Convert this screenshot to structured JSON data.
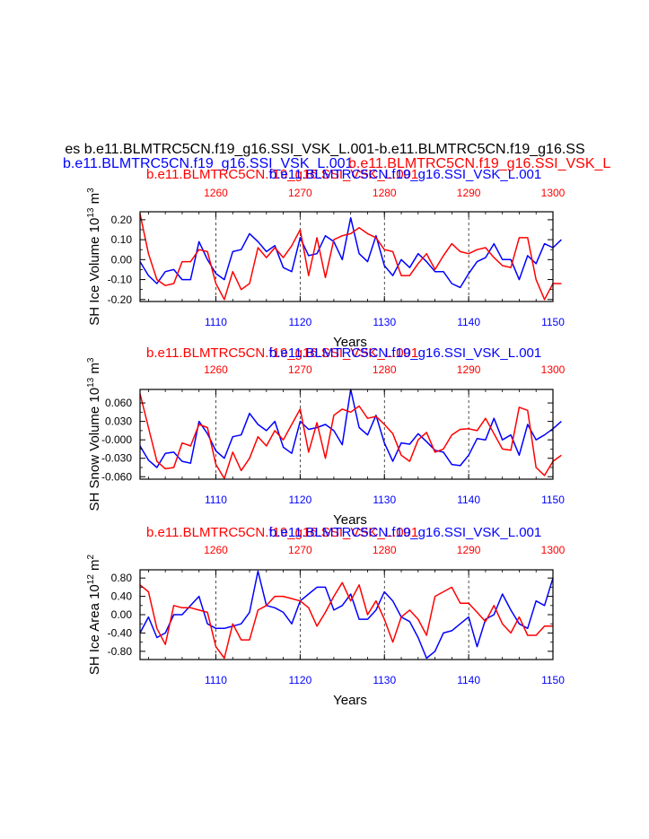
{
  "header": {
    "line1": "es b.e11.BLMTRC5CN.f19_g16.SSI_VSK_L.001-b.e11.BLMTRC5CN.f19_g16.SS",
    "line2_blue": "b.e11.BLMTRC5CN.f19_g16.SSI_VSK_L.001",
    "line2_red": "b.e11.BLMTRC5CN.f19_g16.SSI_VSK_L",
    "colors": {
      "blue": "#0000ff",
      "red": "#ff0000",
      "black": "#000000"
    }
  },
  "chart_data": [
    {
      "type": "line",
      "key": "ice_volume",
      "top_label_red": "b.e11.BLMTRC5CN.f19_g16.SSI_VSK_L.001",
      "top_label_blue": "b.e11.BLMTRC5CN.f19_g16.SSI_VSK_L.001",
      "ylabel": "SH Ice Volume 10^13 m^3",
      "ylabel_main": "SH Ice Volume 10",
      "ylabel_sup1": "13",
      "ylabel_mid": " m",
      "ylabel_sup2": "3",
      "xlabel": "Years",
      "xlim": [
        1101,
        1150
      ],
      "ylim": [
        -0.21,
        0.24
      ],
      "bottom_ticks": [
        1110,
        1120,
        1130,
        1140,
        1150
      ],
      "top_ticks": [
        1260,
        1270,
        1280,
        1290,
        1300
      ],
      "top_offset": 150,
      "yticks": [
        0.2,
        0.1,
        0.0,
        -0.1,
        -0.2
      ],
      "ytick_labels": [
        "0.20",
        "0.10",
        "0.00",
        "-0.10",
        "-0.20"
      ],
      "series": [
        {
          "name": "b.e11.BLMTRC5CN.f19_g16.SSI_VSK_L.001",
          "color": "#0000ff",
          "x_start": 1101,
          "values": [
            -0.01,
            -0.08,
            -0.12,
            -0.06,
            -0.05,
            -0.1,
            -0.1,
            0.09,
            0.0,
            -0.07,
            -0.1,
            0.04,
            0.05,
            0.13,
            0.09,
            0.04,
            0.07,
            -0.04,
            -0.06,
            0.11,
            0.02,
            0.03,
            0.12,
            0.09,
            0.0,
            0.21,
            0.03,
            -0.01,
            0.12,
            -0.03,
            -0.08,
            0.0,
            -0.04,
            0.03,
            -0.01,
            -0.06,
            -0.06,
            -0.12,
            -0.14,
            -0.07,
            -0.01,
            0.01,
            0.08,
            0.0,
            0.0,
            -0.1,
            0.02,
            -0.02,
            0.08,
            0.06,
            0.1
          ]
        },
        {
          "name": "b.e11.BLMTRC5CN.f19_g16.SSI_VSK_L.001",
          "color": "#ff0000",
          "x_start": 1101,
          "values": [
            0.23,
            0.03,
            -0.1,
            -0.13,
            -0.12,
            -0.01,
            -0.01,
            0.05,
            0.04,
            -0.12,
            -0.2,
            -0.06,
            -0.15,
            -0.12,
            0.06,
            0.01,
            0.06,
            0.01,
            0.07,
            0.15,
            -0.08,
            0.11,
            -0.09,
            0.1,
            0.12,
            0.13,
            0.16,
            0.13,
            0.11,
            0.05,
            0.04,
            -0.08,
            -0.08,
            -0.02,
            0.03,
            -0.05,
            0.02,
            0.08,
            0.04,
            0.03,
            0.05,
            0.06,
            0.01,
            -0.03,
            -0.04,
            0.11,
            0.11,
            -0.1,
            -0.2,
            -0.12,
            -0.12
          ]
        }
      ]
    },
    {
      "type": "line",
      "key": "snow_volume",
      "top_label_red": "b.e11.BLMTRC5CN.f19_g16.SSI_VSK_L.001",
      "top_label_blue": "b.e11.BLMTRC5CN.f19_g16.SSI_VSK_L.001",
      "ylabel": "SH Snow Volume 10^13 m^3",
      "ylabel_main": "SH Snow Volume 10",
      "ylabel_sup1": "13",
      "ylabel_mid": " m",
      "ylabel_sup2": "3",
      "xlabel": "Years",
      "xlim": [
        1101,
        1150
      ],
      "ylim": [
        -0.064,
        0.082
      ],
      "bottom_ticks": [
        1110,
        1120,
        1130,
        1140,
        1150
      ],
      "top_ticks": [
        1260,
        1270,
        1280,
        1290,
        1300
      ],
      "top_offset": 150,
      "yticks": [
        0.06,
        0.03,
        0.0,
        -0.03,
        -0.06
      ],
      "ytick_labels": [
        "0.060",
        "0.030",
        "-0.000",
        "-0.030",
        "-0.060"
      ],
      "series": [
        {
          "name": "b.e11.BLMTRC5CN.f19_g16.SSI_VSK_L.001",
          "color": "#0000ff",
          "x_start": 1101,
          "values": [
            -0.01,
            -0.033,
            -0.045,
            -0.022,
            -0.02,
            -0.035,
            -0.038,
            0.03,
            0.01,
            -0.018,
            -0.03,
            0.005,
            0.008,
            0.043,
            0.025,
            0.015,
            0.03,
            -0.012,
            -0.022,
            0.03,
            0.017,
            0.02,
            0.025,
            0.015,
            -0.008,
            0.082,
            0.02,
            0.008,
            0.04,
            -0.005,
            -0.035,
            -0.005,
            -0.007,
            0.01,
            -0.003,
            -0.017,
            -0.02,
            -0.04,
            -0.042,
            -0.025,
            0.002,
            0.0,
            0.035,
            0.0,
            0.008,
            -0.025,
            0.025,
            0.0,
            0.008,
            0.018,
            0.03
          ]
        },
        {
          "name": "b.e11.BLMTRC5CN.f19_g16.SSI_VSK_L.001",
          "color": "#ff0000",
          "x_start": 1101,
          "values": [
            0.075,
            0.02,
            -0.035,
            -0.047,
            -0.045,
            -0.005,
            -0.01,
            0.025,
            0.02,
            -0.04,
            -0.063,
            -0.02,
            -0.05,
            -0.03,
            0.005,
            -0.01,
            0.015,
            0.0,
            0.025,
            0.05,
            -0.02,
            0.028,
            -0.03,
            0.04,
            0.05,
            0.045,
            0.055,
            0.035,
            0.038,
            0.025,
            0.01,
            -0.025,
            -0.035,
            0.0,
            0.012,
            -0.02,
            -0.015,
            0.008,
            0.017,
            0.018,
            0.015,
            0.035,
            0.01,
            -0.015,
            -0.017,
            0.053,
            0.048,
            -0.045,
            -0.058,
            -0.035,
            -0.025
          ]
        }
      ]
    },
    {
      "type": "line",
      "key": "ice_area",
      "top_label_red": "b.e11.BLMTRC5CN.f19_g16.SSI_VSK_L.001",
      "top_label_blue": "b.e11.BLMTRC5CN.f19_g16.SSI_VSK_L.001",
      "ylabel": "SH Ice Area 10^12 m^2",
      "ylabel_main": "SH Ice Area 10",
      "ylabel_sup1": "12",
      "ylabel_mid": " m",
      "ylabel_sup2": "2",
      "xlabel": "Years",
      "xlim": [
        1101,
        1150
      ],
      "ylim": [
        -0.98,
        0.98
      ],
      "bottom_ticks": [
        1110,
        1120,
        1130,
        1140,
        1150
      ],
      "top_ticks": [
        1260,
        1270,
        1280,
        1290,
        1300
      ],
      "top_offset": 150,
      "yticks": [
        0.8,
        0.4,
        0.0,
        -0.4,
        -0.8
      ],
      "ytick_labels": [
        "0.80",
        "0.40",
        "0.00",
        "-0.40",
        "-0.80"
      ],
      "series": [
        {
          "name": "b.e11.BLMTRC5CN.f19_g16.SSI_VSK_L.001",
          "color": "#0000ff",
          "x_start": 1101,
          "values": [
            -0.4,
            -0.05,
            -0.5,
            -0.4,
            0.0,
            0.0,
            0.2,
            0.4,
            -0.2,
            -0.3,
            -0.3,
            -0.25,
            -0.2,
            0.05,
            0.95,
            0.2,
            0.15,
            0.05,
            -0.2,
            0.3,
            0.45,
            0.6,
            0.6,
            0.1,
            0.2,
            0.45,
            -0.1,
            -0.1,
            0.1,
            0.5,
            0.3,
            -0.05,
            -0.15,
            -0.5,
            -0.95,
            -0.8,
            -0.4,
            -0.35,
            -0.2,
            -0.05,
            -0.7,
            -0.1,
            0.0,
            0.45,
            0.1,
            -0.2,
            -0.3,
            0.3,
            0.2,
            0.8
          ]
        },
        {
          "name": "b.e11.BLMTRC5CN.f19_g16.SSI_VSK_L.001",
          "color": "#ff0000",
          "x_start": 1101,
          "values": [
            0.65,
            0.5,
            -0.3,
            -0.65,
            0.2,
            0.15,
            0.15,
            0.1,
            0.05,
            -0.7,
            -0.95,
            -0.2,
            -0.55,
            -0.55,
            0.1,
            0.2,
            0.4,
            0.4,
            0.35,
            0.3,
            0.15,
            -0.25,
            0.05,
            0.4,
            0.7,
            0.3,
            0.65,
            0.0,
            0.3,
            -0.1,
            -0.6,
            -0.05,
            0.1,
            -0.1,
            -0.45,
            0.4,
            0.5,
            0.6,
            0.25,
            0.25,
            0.05,
            -0.15,
            0.2,
            -0.2,
            -0.4,
            -0.05,
            -0.45,
            -0.45,
            -0.25,
            -0.25
          ]
        }
      ]
    }
  ]
}
